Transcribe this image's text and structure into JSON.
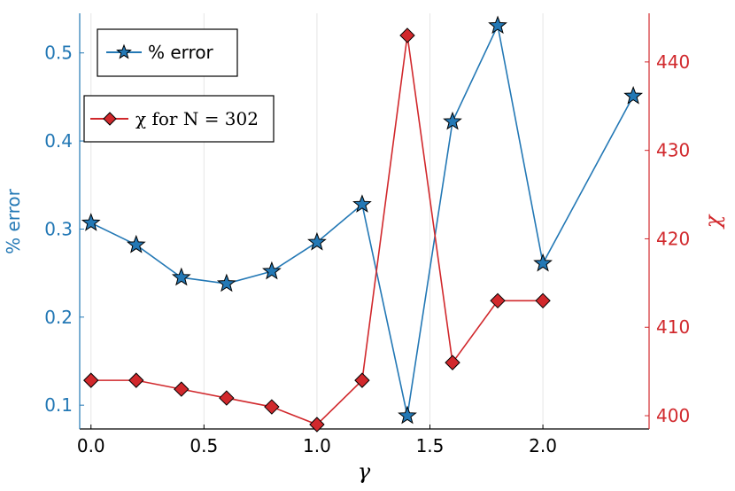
{
  "chart_data": {
    "type": "line",
    "xlabel": "γ",
    "ylabel_left": "% error",
    "ylabel_right": "χ",
    "xlim": [
      -0.05,
      2.47
    ],
    "ylim_left": [
      0.073,
      0.545
    ],
    "ylim_right": [
      398.5,
      445.5
    ],
    "xticks": [
      "0.0",
      "0.5",
      "1.0",
      "1.5",
      "2.0"
    ],
    "xtick_values": [
      0.0,
      0.5,
      1.0,
      1.5,
      2.0
    ],
    "yticks_left": [
      "0.1",
      "0.2",
      "0.3",
      "0.4",
      "0.5"
    ],
    "ytick_values_left": [
      0.1,
      0.2,
      0.3,
      0.4,
      0.5
    ],
    "yticks_right": [
      "400",
      "410",
      "420",
      "430",
      "440"
    ],
    "ytick_values_right": [
      400,
      410,
      420,
      430,
      440
    ],
    "grid": true,
    "series": [
      {
        "name": "% error",
        "axis": "left",
        "marker": "star",
        "color": "#2378b5",
        "x": [
          0.0,
          0.2,
          0.4,
          0.6,
          0.8,
          1.0,
          1.2,
          1.4,
          1.6,
          1.8,
          2.0,
          2.4
        ],
        "values": [
          0.307,
          0.282,
          0.245,
          0.238,
          0.252,
          0.285,
          0.328,
          0.088,
          0.422,
          0.531,
          0.261,
          0.451
        ]
      },
      {
        "name": "χ for N = 302",
        "axis": "right",
        "marker": "diamond",
        "color": "#d1282c",
        "x": [
          0.0,
          0.2,
          0.4,
          0.6,
          0.8,
          1.0,
          1.2,
          1.4,
          1.6,
          1.8,
          2.0
        ],
        "values": [
          404,
          404,
          403,
          402,
          401,
          399,
          404,
          443,
          406,
          413,
          413
        ]
      }
    ],
    "legend": [
      {
        "label": "% error",
        "position": "top-left"
      },
      {
        "label": "χ for N = 302",
        "position": "upper-left"
      }
    ]
  }
}
